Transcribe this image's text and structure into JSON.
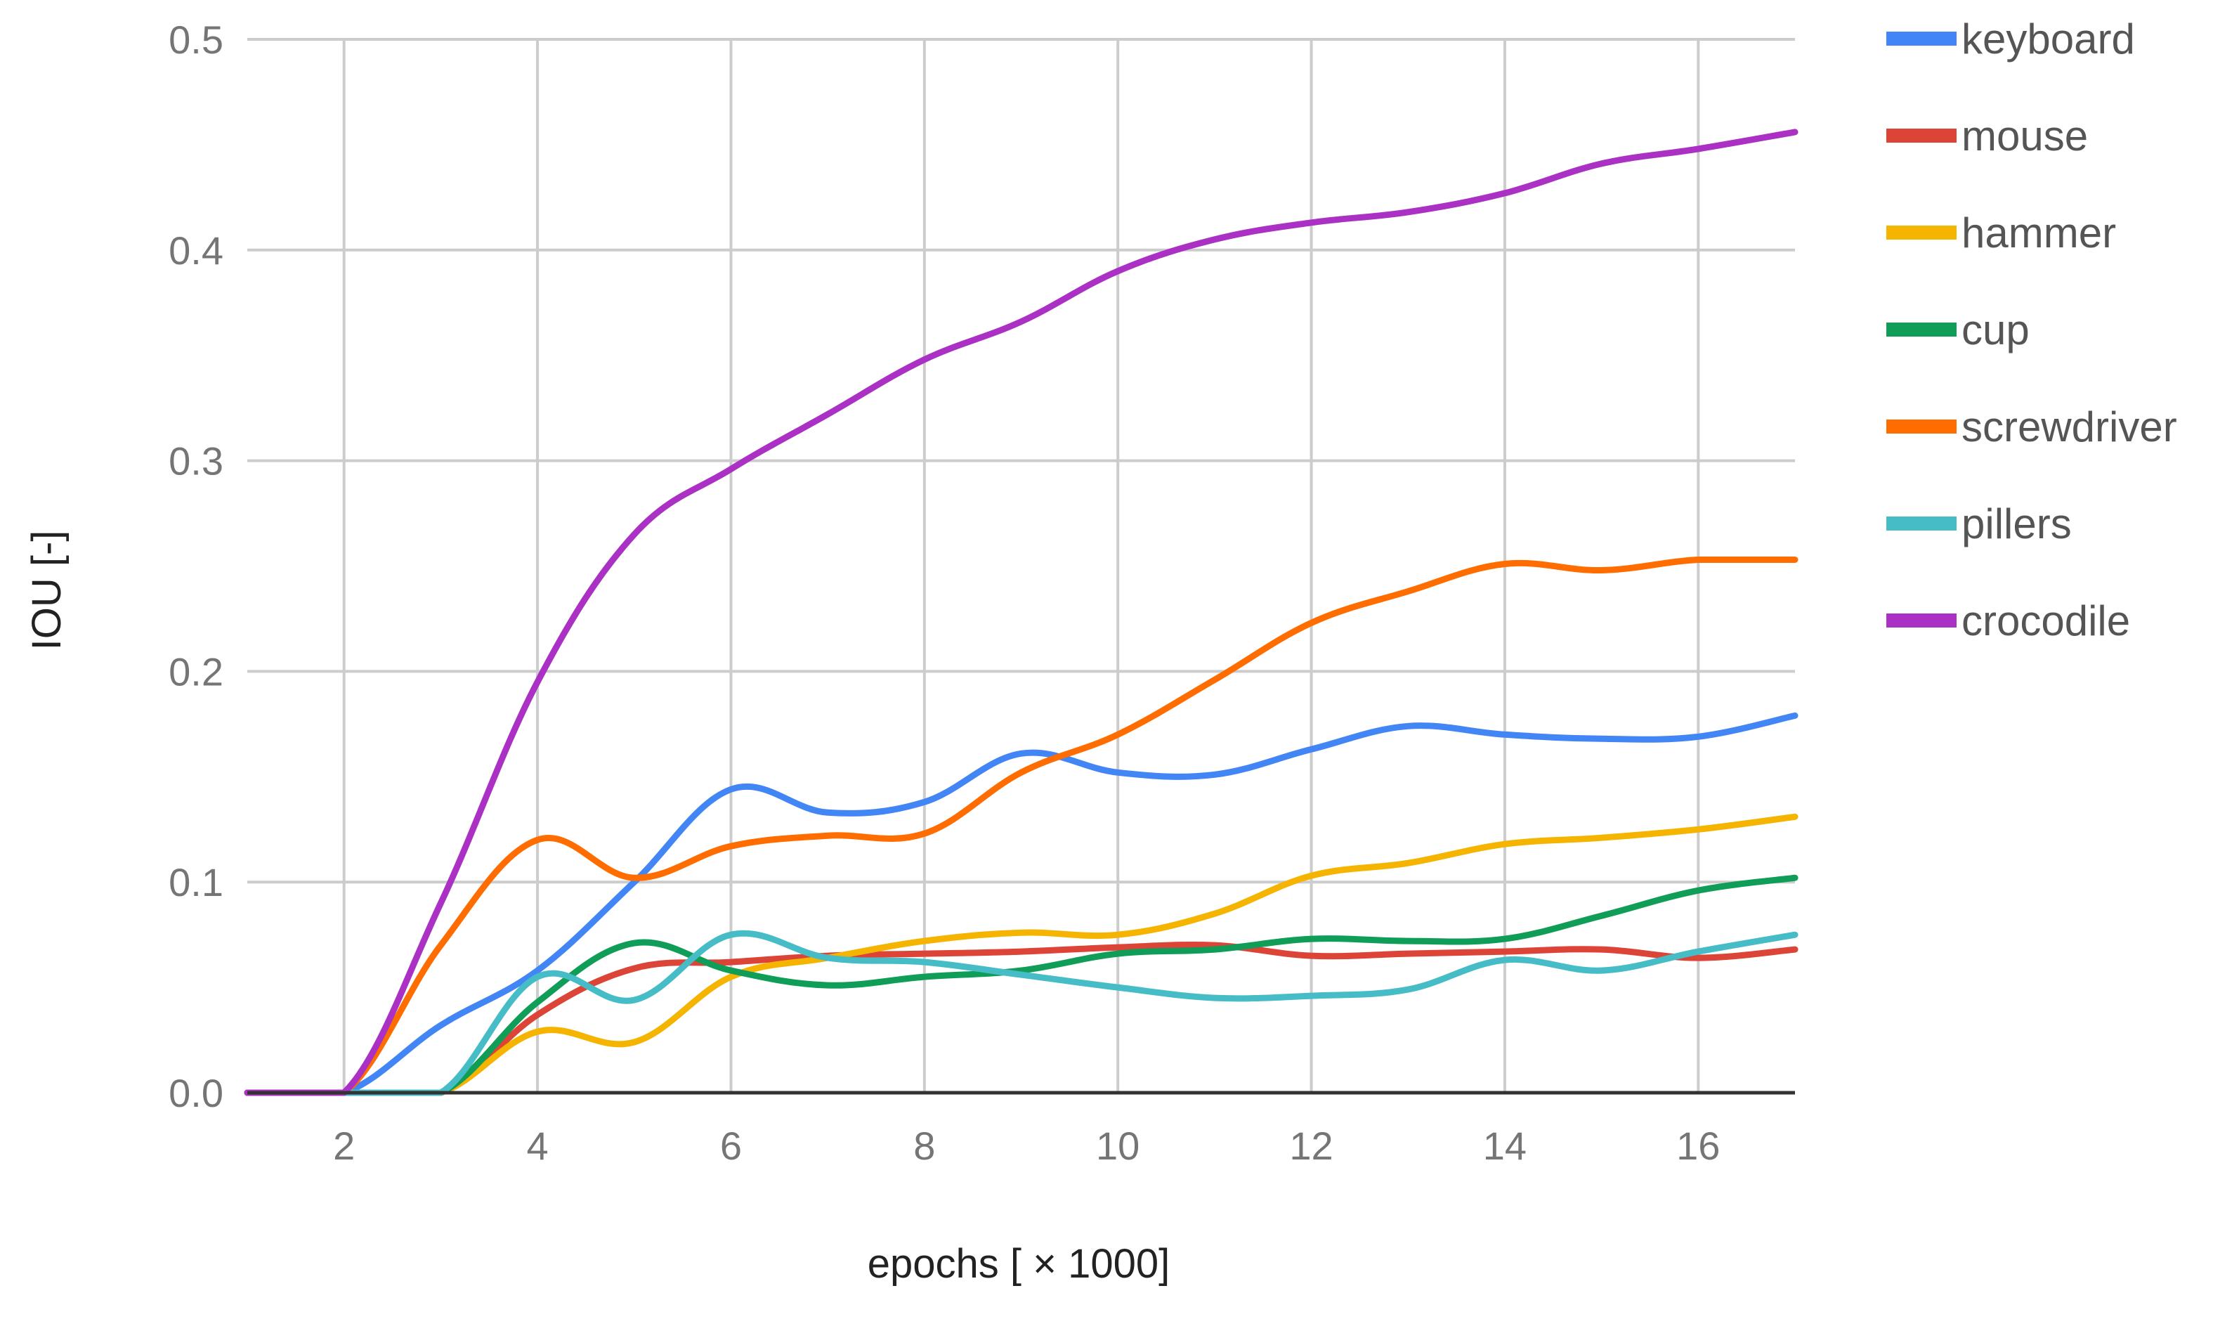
{
  "chart_data": {
    "type": "line",
    "title": "",
    "xlabel": "epochs [ × 1000]",
    "ylabel": "IOU  [-]",
    "xlim": [
      1,
      17
    ],
    "ylim": [
      0,
      0.5
    ],
    "grid": true,
    "legend_position": "right",
    "x_ticks": [
      2,
      4,
      6,
      8,
      10,
      12,
      14,
      16
    ],
    "x_tick_labels": [
      "2",
      "4",
      "6",
      "8",
      "10",
      "12",
      "14",
      "16"
    ],
    "y_ticks": [
      0,
      0.1,
      0.2,
      0.3,
      0.4,
      0.5
    ],
    "y_tick_labels": [
      "0.0",
      "0.1",
      "0.2",
      "0.3",
      "0.4",
      "0.5"
    ],
    "x": [
      1,
      2,
      3,
      4,
      5,
      6,
      7,
      8,
      9,
      10,
      11,
      12,
      13,
      14,
      15,
      16,
      17
    ],
    "series": [
      {
        "name": "keyboard",
        "color": "#4285f4",
        "values": [
          0,
          0,
          0.032,
          0.058,
          0.1,
          0.144,
          0.133,
          0.138,
          0.161,
          0.152,
          0.151,
          0.163,
          0.174,
          0.17,
          0.168,
          0.169,
          0.179
        ]
      },
      {
        "name": "mouse",
        "color": "#db4437",
        "values": [
          0,
          0,
          0,
          0.037,
          0.059,
          0.062,
          0.065,
          0.066,
          0.067,
          0.069,
          0.07,
          0.065,
          0.066,
          0.067,
          0.068,
          0.064,
          0.068
        ]
      },
      {
        "name": "hammer",
        "color": "#f4b400",
        "values": [
          0,
          0,
          0,
          0.029,
          0.024,
          0.055,
          0.064,
          0.072,
          0.076,
          0.075,
          0.085,
          0.103,
          0.109,
          0.118,
          0.121,
          0.125,
          0.131
        ]
      },
      {
        "name": "cup",
        "color": "#0f9d58",
        "values": [
          0,
          0,
          0,
          0.043,
          0.071,
          0.058,
          0.051,
          0.055,
          0.058,
          0.066,
          0.068,
          0.073,
          0.072,
          0.073,
          0.084,
          0.096,
          0.102
        ]
      },
      {
        "name": "screwdriver",
        "color": "#ff6d00",
        "values": [
          0,
          0,
          0.07,
          0.12,
          0.102,
          0.117,
          0.122,
          0.123,
          0.152,
          0.17,
          0.196,
          0.223,
          0.238,
          0.251,
          0.248,
          0.253,
          0.253
        ]
      },
      {
        "name": "pillers",
        "color": "#46bdc6",
        "values": [
          0,
          0,
          0,
          0.055,
          0.044,
          0.075,
          0.064,
          0.062,
          0.056,
          0.05,
          0.045,
          0.046,
          0.049,
          0.063,
          0.058,
          0.067,
          0.075
        ]
      },
      {
        "name": "crocodile",
        "color": "#ab30c4",
        "values": [
          0,
          0,
          0.09,
          0.195,
          0.265,
          0.296,
          0.322,
          0.348,
          0.366,
          0.39,
          0.405,
          0.413,
          0.418,
          0.427,
          0.441,
          0.448,
          0.456
        ]
      }
    ]
  }
}
